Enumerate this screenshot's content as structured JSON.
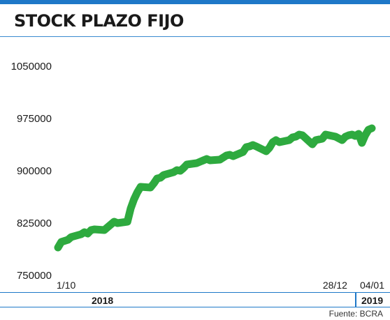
{
  "title": "STOCK PLAZO FIJO",
  "source": "Fuente: BCRA",
  "colors": {
    "line": "#2eaa3f",
    "accent": "#1e78c8",
    "text": "#1a1a1a"
  },
  "chart_data": {
    "type": "line",
    "title": "STOCK PLAZO FIJO",
    "xlabel": "",
    "ylabel": "",
    "grid": false,
    "ylim": [
      750000,
      1050000
    ],
    "y_ticks": [
      {
        "value": 1050000,
        "label": "1050000"
      },
      {
        "value": 975000,
        "label": "975000"
      },
      {
        "value": 900000,
        "label": "900000"
      },
      {
        "value": 825000,
        "label": "825000"
      },
      {
        "value": 750000,
        "label": "750000"
      }
    ],
    "x_range": [
      "2018-10-01",
      "2019-01-04"
    ],
    "x_ticks": [
      {
        "date": "2018-10-01",
        "label": "1/10"
      },
      {
        "date": "2018-12-28",
        "label": "28/12"
      },
      {
        "date": "2019-01-04",
        "label": "04/01"
      }
    ],
    "year_labels": [
      {
        "label": "2018"
      },
      {
        "label": "2019"
      }
    ],
    "series": [
      {
        "points": [
          [
            "2018-10-01",
            789000
          ],
          [
            "2018-10-02",
            797000
          ],
          [
            "2018-10-04",
            800000
          ],
          [
            "2018-10-05",
            804000
          ],
          [
            "2018-10-08",
            808000
          ],
          [
            "2018-10-09",
            811000
          ],
          [
            "2018-10-10",
            809000
          ],
          [
            "2018-10-11",
            814000
          ],
          [
            "2018-10-12",
            815000
          ],
          [
            "2018-10-15",
            814000
          ],
          [
            "2018-10-16",
            818000
          ],
          [
            "2018-10-17",
            822000
          ],
          [
            "2018-10-18",
            826000
          ],
          [
            "2018-10-19",
            824000
          ],
          [
            "2018-10-22",
            826000
          ],
          [
            "2018-10-23",
            845000
          ],
          [
            "2018-10-24",
            858000
          ],
          [
            "2018-10-25",
            868000
          ],
          [
            "2018-10-26",
            876000
          ],
          [
            "2018-10-29",
            875000
          ],
          [
            "2018-10-30",
            881000
          ],
          [
            "2018-10-31",
            888000
          ],
          [
            "2018-11-01",
            889000
          ],
          [
            "2018-11-02",
            893000
          ],
          [
            "2018-11-05",
            897000
          ],
          [
            "2018-11-06",
            900000
          ],
          [
            "2018-11-07",
            899000
          ],
          [
            "2018-11-08",
            903000
          ],
          [
            "2018-11-09",
            908000
          ],
          [
            "2018-11-12",
            910000
          ],
          [
            "2018-11-13",
            912000
          ],
          [
            "2018-11-14",
            914000
          ],
          [
            "2018-11-15",
            916000
          ],
          [
            "2018-11-16",
            914000
          ],
          [
            "2018-11-19",
            915000
          ],
          [
            "2018-11-20",
            918000
          ],
          [
            "2018-11-21",
            921000
          ],
          [
            "2018-11-22",
            922000
          ],
          [
            "2018-11-23",
            920000
          ],
          [
            "2018-11-26",
            926000
          ],
          [
            "2018-11-27",
            933000
          ],
          [
            "2018-11-28",
            934000
          ],
          [
            "2018-11-29",
            936000
          ],
          [
            "2018-11-30",
            934000
          ],
          [
            "2018-12-03",
            927000
          ],
          [
            "2018-12-04",
            932000
          ],
          [
            "2018-12-05",
            940000
          ],
          [
            "2018-12-06",
            943000
          ],
          [
            "2018-12-07",
            940000
          ],
          [
            "2018-12-10",
            943000
          ],
          [
            "2018-12-11",
            947000
          ],
          [
            "2018-12-12",
            948000
          ],
          [
            "2018-12-13",
            951000
          ],
          [
            "2018-12-14",
            950000
          ],
          [
            "2018-12-17",
            937000
          ],
          [
            "2018-12-18",
            943000
          ],
          [
            "2018-12-19",
            944000
          ],
          [
            "2018-12-20",
            945000
          ],
          [
            "2018-12-21",
            951000
          ],
          [
            "2018-12-24",
            948000
          ],
          [
            "2018-12-26",
            943000
          ],
          [
            "2018-12-27",
            948000
          ],
          [
            "2018-12-28",
            950000
          ],
          [
            "2018-12-29",
            951000
          ],
          [
            "2018-12-30",
            949000
          ],
          [
            "2018-12-31",
            952000
          ],
          [
            "2019-01-01",
            939000
          ],
          [
            "2019-01-02",
            950000
          ],
          [
            "2019-01-03",
            958000
          ],
          [
            "2019-01-04",
            960000
          ]
        ]
      }
    ]
  }
}
